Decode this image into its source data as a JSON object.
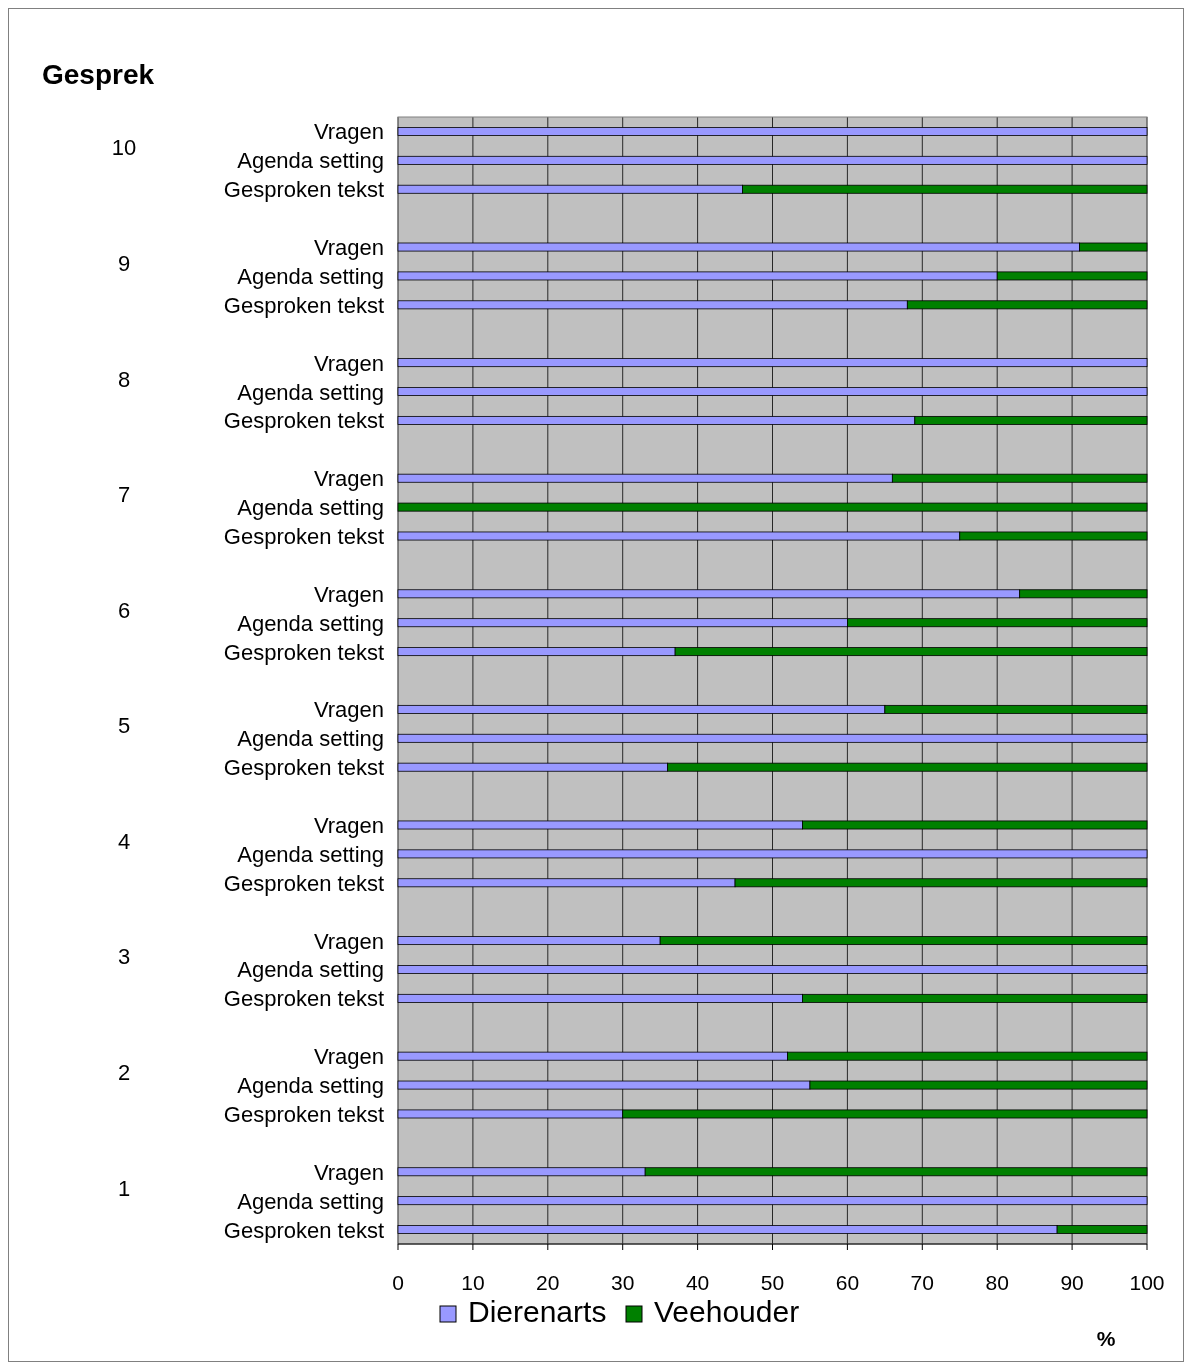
{
  "chart_data": {
    "type": "bar",
    "orientation": "horizontal",
    "stacked": true,
    "title": "Gesprek",
    "xlabel": "%",
    "categories": [
      "Vragen",
      "Agenda setting",
      "Gesproken tekst",
      null,
      "Vragen",
      "Agenda setting",
      "Gesproken tekst",
      null,
      "Vragen",
      "Agenda setting",
      "Gesproken tekst",
      null,
      "Vragen",
      "Agenda setting",
      "Gesproken tekst",
      null,
      "Vragen",
      "Agenda setting",
      "Gesproken tekst",
      null,
      "Vragen",
      "Agenda setting",
      "Gesproken tekst",
      null,
      "Vragen",
      "Agenda setting",
      "Gesproken tekst",
      null,
      "Vragen",
      "Agenda setting",
      "Gesproken tekst",
      null,
      "Vragen",
      "Agenda setting",
      "Gesproken tekst",
      null,
      "Vragen",
      "Agenda setting",
      "Gesproken tekst"
    ],
    "series": [
      {
        "name": "Dierenarts",
        "color": "#9999ff",
        "values": [
          100,
          100,
          46,
          null,
          91,
          80,
          68,
          null,
          100,
          100,
          69,
          null,
          66,
          0,
          75,
          null,
          83,
          60,
          37,
          null,
          65,
          100,
          36,
          null,
          54,
          100,
          45,
          null,
          35,
          100,
          54,
          null,
          52,
          55,
          30,
          null,
          33,
          100,
          88
        ]
      },
      {
        "name": "Veehouder",
        "color": "#008000",
        "values": [
          0,
          0,
          54,
          null,
          9,
          20,
          32,
          null,
          0,
          0,
          31,
          null,
          34,
          100,
          25,
          null,
          17,
          40,
          63,
          null,
          35,
          0,
          64,
          null,
          46,
          0,
          55,
          null,
          65,
          0,
          46,
          null,
          48,
          45,
          70,
          null,
          67,
          0,
          12
        ]
      }
    ],
    "annotations": [
      "10",
      "9",
      "8",
      "7",
      "6",
      "5",
      "4",
      "3",
      "2",
      "1"
    ],
    "xlim": [
      0,
      100
    ],
    "xticks": [
      0,
      10,
      20,
      30,
      40,
      50,
      60,
      70,
      80,
      90,
      100
    ],
    "grid": "x",
    "legend": "bottom"
  }
}
